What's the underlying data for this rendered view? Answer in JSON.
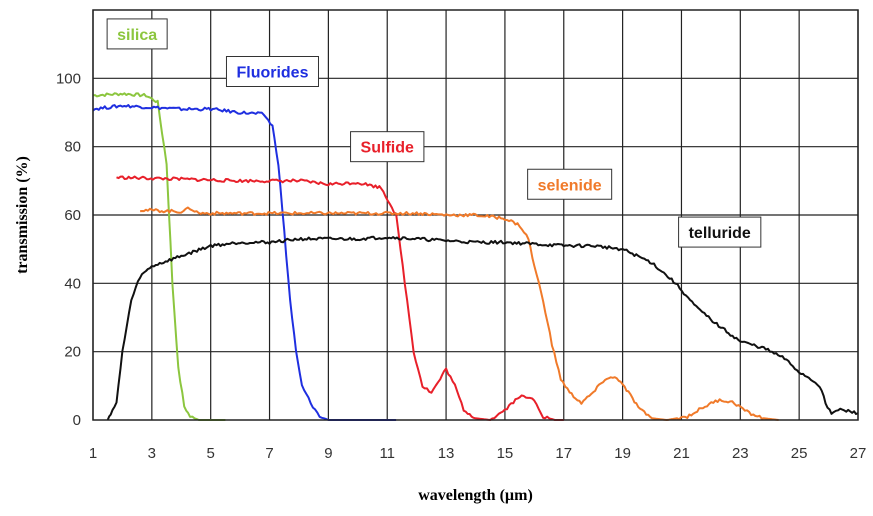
{
  "chart_data": {
    "type": "line",
    "title": "",
    "xlabel": "wavelength (µm)",
    "ylabel": "transmission (%)",
    "xlim": [
      1,
      27
    ],
    "ylim": [
      0,
      120
    ],
    "x_ticks": [
      1,
      3,
      5,
      7,
      9,
      11,
      13,
      15,
      17,
      19,
      21,
      23,
      25,
      27
    ],
    "y_ticks": [
      0,
      20,
      40,
      60,
      80,
      100
    ],
    "grid": true,
    "legend": "inline labels",
    "series": [
      {
        "name": "silica",
        "color": "#8cc63f",
        "points": [
          [
            1,
            95
          ],
          [
            2,
            95.5
          ],
          [
            2.8,
            95
          ],
          [
            3.2,
            93
          ],
          [
            3.5,
            75
          ],
          [
            3.7,
            40
          ],
          [
            3.9,
            15
          ],
          [
            4.1,
            4
          ],
          [
            4.3,
            1
          ],
          [
            4.6,
            0
          ],
          [
            5.5,
            0
          ]
        ]
      },
      {
        "name": "Fluorides",
        "color": "#1f2fe0",
        "points": [
          [
            1,
            91
          ],
          [
            2,
            92
          ],
          [
            3,
            91.5
          ],
          [
            4,
            91
          ],
          [
            5,
            91
          ],
          [
            6,
            90
          ],
          [
            6.8,
            89.5
          ],
          [
            7.1,
            86
          ],
          [
            7.3,
            75
          ],
          [
            7.5,
            55
          ],
          [
            7.7,
            35
          ],
          [
            7.9,
            20
          ],
          [
            8.1,
            10
          ],
          [
            8.4,
            5
          ],
          [
            8.7,
            1
          ],
          [
            9.0,
            0
          ],
          [
            10,
            0
          ],
          [
            11.3,
            0
          ]
        ]
      },
      {
        "name": "Sulfide",
        "color": "#e8202a",
        "points": [
          [
            1.8,
            71
          ],
          [
            4,
            70.5
          ],
          [
            6,
            70
          ],
          [
            8,
            70
          ],
          [
            9,
            69
          ],
          [
            10,
            69.5
          ],
          [
            10.8,
            68
          ],
          [
            11.3,
            60
          ],
          [
            11.6,
            40
          ],
          [
            11.9,
            20
          ],
          [
            12.2,
            10
          ],
          [
            12.5,
            8
          ],
          [
            12.8,
            12
          ],
          [
            13.0,
            15
          ],
          [
            13.3,
            10
          ],
          [
            13.6,
            3
          ],
          [
            14.0,
            0.5
          ],
          [
            14.5,
            0
          ],
          [
            15.0,
            3
          ],
          [
            15.5,
            7
          ],
          [
            16.0,
            6
          ],
          [
            16.3,
            1
          ],
          [
            16.7,
            0
          ],
          [
            17.0,
            0
          ]
        ]
      },
      {
        "name": "selenide",
        "color": "#f07a2a",
        "points": [
          [
            2.6,
            61.5
          ],
          [
            4,
            61
          ],
          [
            4.3,
            62
          ],
          [
            4.6,
            60.5
          ],
          [
            6,
            60.5
          ],
          [
            8,
            60.5
          ],
          [
            10,
            60.5
          ],
          [
            12,
            60.5
          ],
          [
            13,
            60
          ],
          [
            14,
            60
          ],
          [
            15,
            59
          ],
          [
            15.5,
            57
          ],
          [
            15.8,
            53
          ],
          [
            16.0,
            45
          ],
          [
            16.3,
            35
          ],
          [
            16.6,
            22
          ],
          [
            16.9,
            12
          ],
          [
            17.2,
            8
          ],
          [
            17.6,
            5
          ],
          [
            18.0,
            8
          ],
          [
            18.4,
            12
          ],
          [
            18.8,
            12.5
          ],
          [
            19.2,
            8
          ],
          [
            19.6,
            3
          ],
          [
            20.0,
            0.5
          ],
          [
            20.5,
            0
          ],
          [
            21.2,
            1
          ],
          [
            21.8,
            4
          ],
          [
            22.3,
            6
          ],
          [
            22.8,
            5
          ],
          [
            23.3,
            2
          ],
          [
            23.8,
            0.5
          ],
          [
            24.3,
            0
          ]
        ]
      },
      {
        "name": "telluride",
        "color": "#111111",
        "points": [
          [
            1.5,
            0
          ],
          [
            1.6,
            2
          ],
          [
            1.8,
            5
          ],
          [
            2.0,
            20
          ],
          [
            2.3,
            35
          ],
          [
            2.6,
            42
          ],
          [
            3,
            45
          ],
          [
            4,
            48
          ],
          [
            5,
            51
          ],
          [
            6,
            52
          ],
          [
            7,
            52
          ],
          [
            8,
            53
          ],
          [
            9,
            53
          ],
          [
            10,
            53
          ],
          [
            11,
            53.5
          ],
          [
            12,
            53
          ],
          [
            13,
            52.5
          ],
          [
            14,
            52
          ],
          [
            15,
            52
          ],
          [
            16,
            51.5
          ],
          [
            17,
            51
          ],
          [
            18,
            51
          ],
          [
            19,
            50
          ],
          [
            20,
            46
          ],
          [
            20.8,
            40
          ],
          [
            21.5,
            33
          ],
          [
            22.2,
            28
          ],
          [
            23,
            23
          ],
          [
            23.8,
            21
          ],
          [
            24.5,
            18
          ],
          [
            25.0,
            14
          ],
          [
            25.4,
            12
          ],
          [
            25.7,
            10
          ],
          [
            25.9,
            5
          ],
          [
            26.1,
            2
          ],
          [
            26.4,
            3
          ],
          [
            27,
            2
          ]
        ]
      }
    ],
    "annotations": [
      {
        "text": "silica",
        "series": "silica",
        "x": 2.5,
        "y": 113
      },
      {
        "text": "Fluorides",
        "series": "Fluorides",
        "x": 7.1,
        "y": 102
      },
      {
        "text": "Sulfide",
        "series": "Sulfide",
        "x": 11.0,
        "y": 80
      },
      {
        "text": "selenide",
        "series": "selenide",
        "x": 17.2,
        "y": 69
      },
      {
        "text": "telluride",
        "series": "telluride",
        "x": 22.3,
        "y": 55
      }
    ]
  }
}
